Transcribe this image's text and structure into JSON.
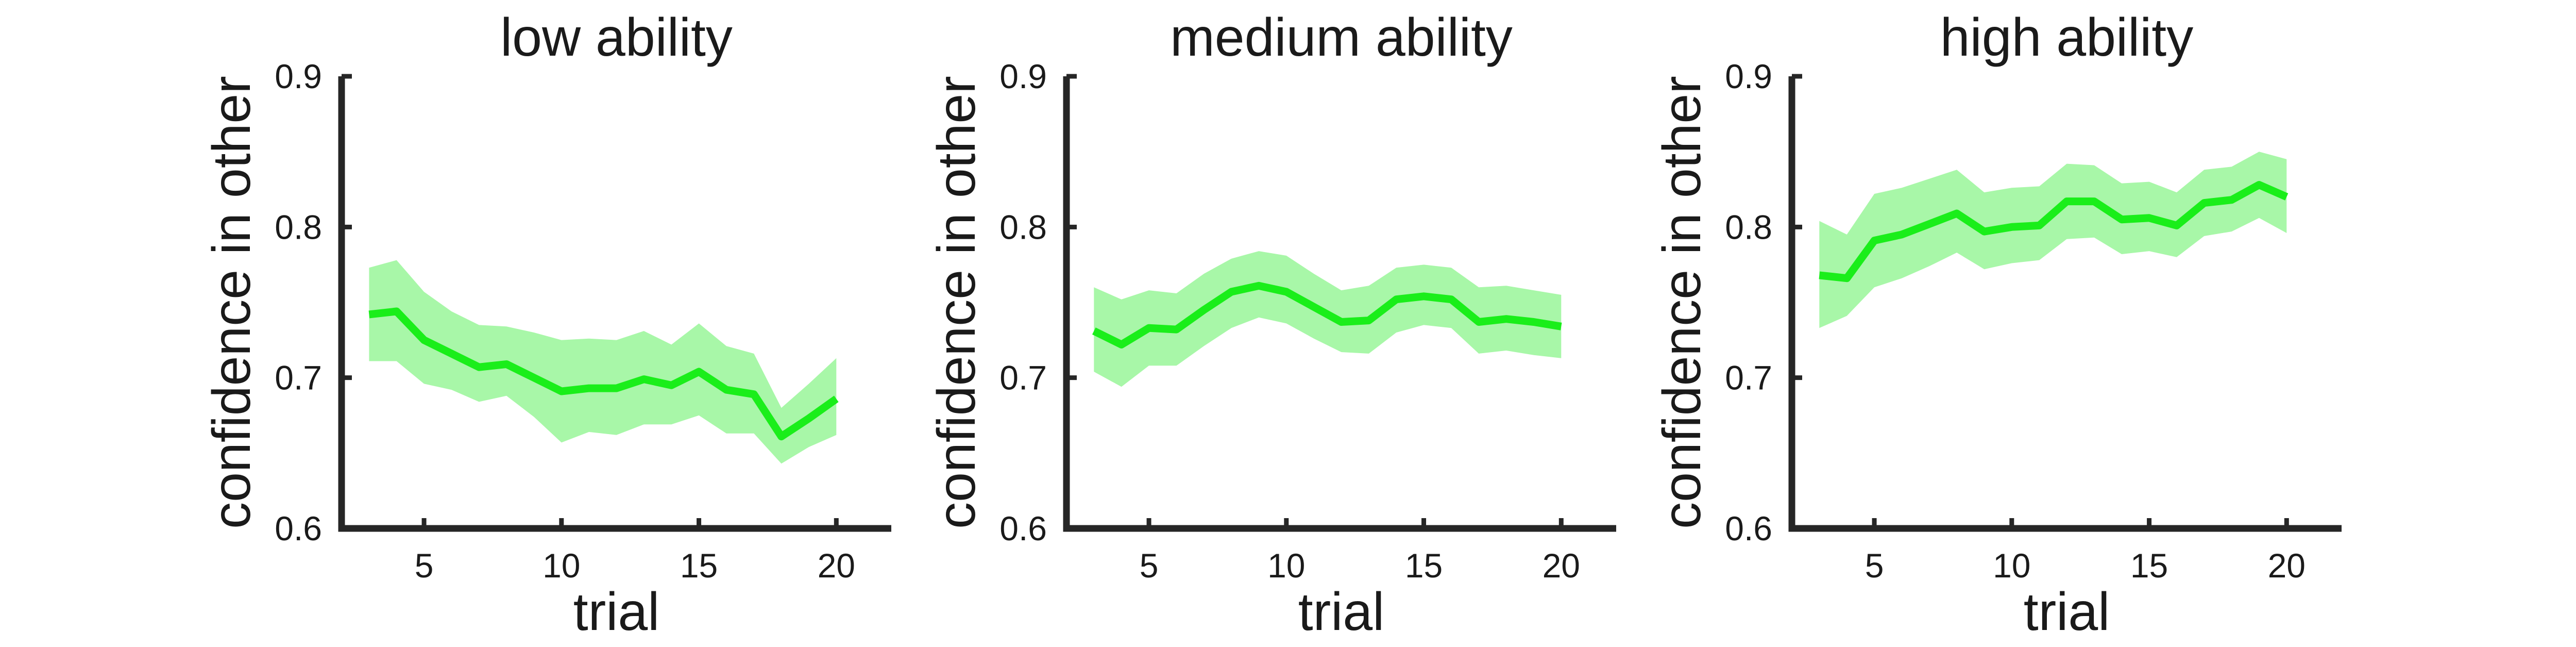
{
  "chart_data": [
    {
      "type": "line",
      "title": "low ability",
      "xlabel": "trial",
      "ylabel": "confidence in other",
      "xlim": [
        2,
        22
      ],
      "ylim": [
        0.6,
        0.9
      ],
      "xticks": [
        5,
        10,
        15,
        20
      ],
      "yticks": [
        0.6,
        0.7,
        0.8,
        0.9
      ],
      "grid": false,
      "series": [
        {
          "color": "#1aee1a",
          "band_color": "#a8f7a8",
          "x": [
            3,
            4,
            5,
            6,
            7,
            8,
            9,
            10,
            11,
            12,
            13,
            14,
            15,
            16,
            17,
            18,
            19,
            20
          ],
          "y": [
            0.742,
            0.744,
            0.725,
            0.716,
            0.707,
            0.709,
            0.7,
            0.691,
            0.693,
            0.693,
            0.699,
            0.695,
            0.704,
            0.692,
            0.689,
            0.661,
            0.673,
            0.686
          ],
          "lower": [
            0.711,
            0.711,
            0.696,
            0.692,
            0.684,
            0.688,
            0.674,
            0.657,
            0.664,
            0.662,
            0.669,
            0.669,
            0.675,
            0.663,
            0.663,
            0.643,
            0.654,
            0.662
          ],
          "upper": [
            0.773,
            0.778,
            0.757,
            0.744,
            0.735,
            0.734,
            0.73,
            0.725,
            0.726,
            0.725,
            0.731,
            0.722,
            0.736,
            0.721,
            0.716,
            0.68,
            0.696,
            0.713
          ]
        }
      ]
    },
    {
      "type": "line",
      "title": "medium ability",
      "xlabel": "trial",
      "ylabel": "confidence in other",
      "xlim": [
        2,
        22
      ],
      "ylim": [
        0.6,
        0.9
      ],
      "xticks": [
        5,
        10,
        15,
        20
      ],
      "yticks": [
        0.6,
        0.7,
        0.8,
        0.9
      ],
      "grid": false,
      "series": [
        {
          "color": "#1aee1a",
          "band_color": "#a8f7a8",
          "x": [
            3,
            4,
            5,
            6,
            7,
            8,
            9,
            10,
            11,
            12,
            13,
            14,
            15,
            16,
            17,
            18,
            19,
            20
          ],
          "y": [
            0.731,
            0.722,
            0.733,
            0.732,
            0.745,
            0.757,
            0.761,
            0.757,
            0.747,
            0.737,
            0.738,
            0.752,
            0.754,
            0.752,
            0.737,
            0.739,
            0.737,
            0.734
          ],
          "lower": [
            0.704,
            0.694,
            0.708,
            0.708,
            0.721,
            0.733,
            0.74,
            0.736,
            0.726,
            0.717,
            0.716,
            0.73,
            0.735,
            0.733,
            0.716,
            0.718,
            0.715,
            0.713
          ],
          "upper": [
            0.76,
            0.752,
            0.758,
            0.756,
            0.769,
            0.779,
            0.784,
            0.781,
            0.769,
            0.758,
            0.761,
            0.773,
            0.775,
            0.773,
            0.76,
            0.761,
            0.758,
            0.755
          ]
        }
      ]
    },
    {
      "type": "line",
      "title": "high ability",
      "xlabel": "trial",
      "ylabel": "confidence in other",
      "xlim": [
        2,
        22
      ],
      "ylim": [
        0.6,
        0.9
      ],
      "xticks": [
        5,
        10,
        15,
        20
      ],
      "yticks": [
        0.6,
        0.7,
        0.8,
        0.9
      ],
      "grid": false,
      "series": [
        {
          "color": "#1aee1a",
          "band_color": "#a8f7a8",
          "x": [
            3,
            4,
            5,
            6,
            7,
            8,
            9,
            10,
            11,
            12,
            13,
            14,
            15,
            16,
            17,
            18,
            19,
            20
          ],
          "y": [
            0.768,
            0.766,
            0.791,
            0.795,
            0.802,
            0.809,
            0.797,
            0.8,
            0.801,
            0.817,
            0.817,
            0.805,
            0.806,
            0.801,
            0.816,
            0.818,
            0.828,
            0.82
          ],
          "lower": [
            0.733,
            0.741,
            0.76,
            0.766,
            0.774,
            0.783,
            0.772,
            0.776,
            0.778,
            0.792,
            0.793,
            0.782,
            0.784,
            0.78,
            0.794,
            0.797,
            0.806,
            0.796
          ],
          "upper": [
            0.804,
            0.795,
            0.822,
            0.826,
            0.832,
            0.838,
            0.823,
            0.826,
            0.827,
            0.842,
            0.841,
            0.829,
            0.83,
            0.823,
            0.838,
            0.84,
            0.85,
            0.845
          ]
        }
      ]
    }
  ]
}
